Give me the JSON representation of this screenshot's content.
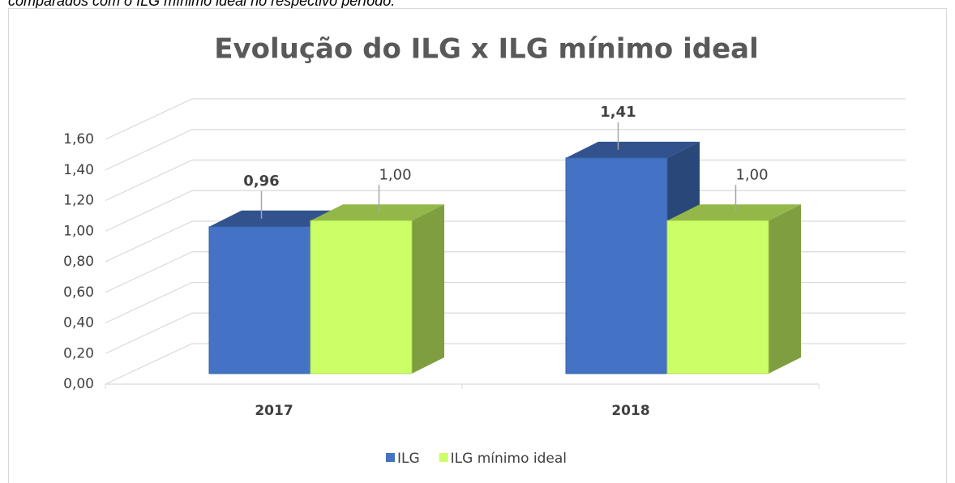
{
  "caption": "comparados com o ILG mínimo ideal no respectivo período.",
  "chart_data": {
    "type": "bar3d",
    "title": "Evolução do ILG x ILG mínimo ideal",
    "categories": [
      "2017",
      "2018"
    ],
    "series": [
      {
        "name": "ILG",
        "color": "#4472c4",
        "values": [
          0.96,
          1.41
        ],
        "value_labels": [
          "0,96",
          "1,41"
        ]
      },
      {
        "name": "ILG mínimo ideal",
        "color": "#ccff66",
        "values": [
          1.0,
          1.0
        ],
        "value_labels": [
          "1,00",
          "1,00"
        ]
      }
    ],
    "ylim": [
      0,
      1.6
    ],
    "yticks": [
      {
        "value": 0,
        "label": "0,00"
      },
      {
        "value": 0.2,
        "label": "0,20"
      },
      {
        "value": 0.4,
        "label": "0,40"
      },
      {
        "value": 0.6,
        "label": "0,60"
      },
      {
        "value": 0.8,
        "label": "0,80"
      },
      {
        "value": 1.0,
        "label": "1,00"
      },
      {
        "value": 1.2,
        "label": "1,20"
      },
      {
        "value": 1.4,
        "label": "1,40"
      },
      {
        "value": 1.6,
        "label": "1,60"
      }
    ],
    "grid": true,
    "legend": "bottom"
  }
}
